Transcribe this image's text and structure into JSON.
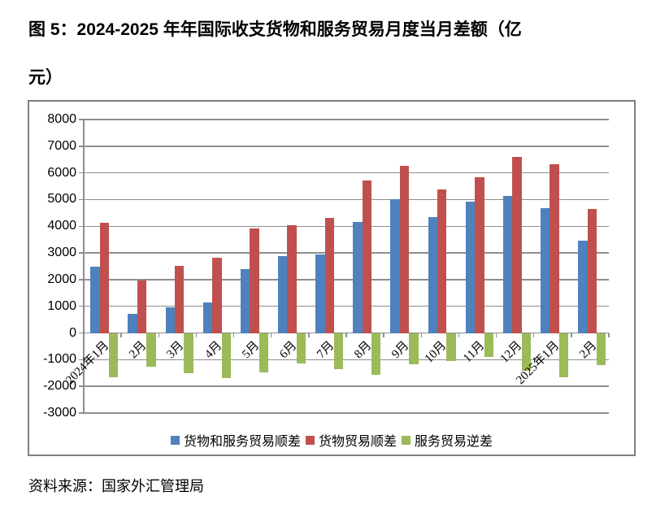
{
  "page": {
    "title_line1": "图 5：2024-2025 年年国际收支货物和服务贸易月度当月差额（亿",
    "title_line2": "元）",
    "source": "资料来源：国家外汇管理局"
  },
  "colors": {
    "goods_and_services_surplus": "#4F81BD",
    "goods_surplus": "#C0504D",
    "services_deficit": "#9BBB59",
    "gridline": "#8E8E8E",
    "chart_border": "#7F7F7F",
    "text": "#000000"
  },
  "chart_data": {
    "type": "bar",
    "title": "2024-2025 年年国际收支货物和服务贸易月度当月差额（亿元）",
    "categories": [
      "2024年1月",
      "2月",
      "3月",
      "4月",
      "5月",
      "6月",
      "7月",
      "8月",
      "9月",
      "10月",
      "11月",
      "12月",
      "2025年1月",
      "2月"
    ],
    "series": [
      {
        "name": "货物和服务贸易顺差",
        "key": "goods-and-services-surplus",
        "color": "#4F81BD",
        "values": [
          2470,
          720,
          960,
          1130,
          2390,
          2890,
          2930,
          4160,
          5000,
          4340,
          4930,
          5130,
          4680,
          3450
        ]
      },
      {
        "name": "货物贸易顺差",
        "key": "goods-surplus",
        "color": "#C0504D",
        "values": [
          4120,
          1980,
          2510,
          2820,
          3920,
          4050,
          4300,
          5720,
          6270,
          5380,
          5840,
          6600,
          6330,
          4650
        ]
      },
      {
        "name": "服务贸易逆差",
        "key": "services-deficit",
        "color": "#9BBB59",
        "values": [
          -1650,
          -1250,
          -1500,
          -1680,
          -1490,
          -1140,
          -1370,
          -1560,
          -1180,
          -1040,
          -900,
          -1420,
          -1660,
          -1190
        ]
      }
    ],
    "xlabel": "",
    "ylabel": "",
    "ylim": [
      -3000,
      8000
    ],
    "ytick_step": 1000,
    "grid": true,
    "legend_position": "bottom"
  }
}
